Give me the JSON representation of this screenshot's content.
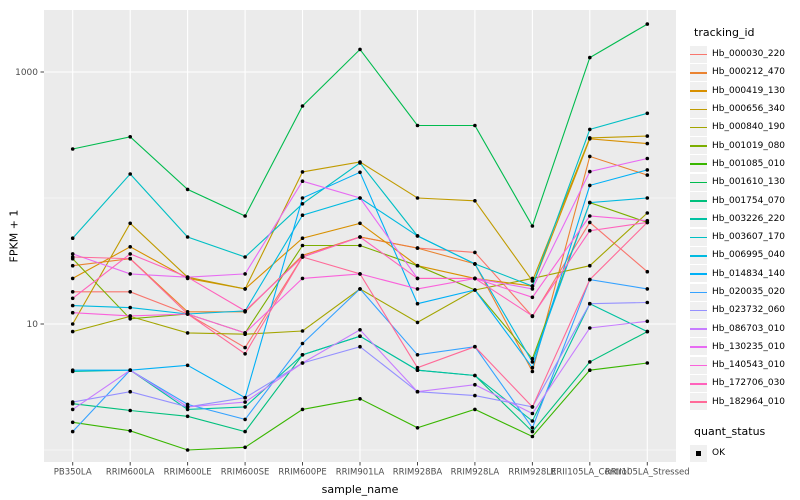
{
  "legend": {
    "tracking_title": "tracking_id",
    "quant_title": "quant_status",
    "quant_items": [
      "OK"
    ]
  },
  "chart_data": {
    "type": "line",
    "title": "",
    "xlabel": "sample_name",
    "ylabel": "FPKM + 1",
    "y_scale": "log10",
    "y_ticks": [
      10,
      1000
    ],
    "y_minor_gridlines": [
      1,
      100
    ],
    "ylim": [
      0.8,
      3100
    ],
    "grid": true,
    "legend_position": "right",
    "panel_background": "#EBEBEB",
    "gridline_color": "#FFFFFF",
    "point_color": "#000000",
    "quant_status_levels": [
      "OK"
    ],
    "categories": [
      "PB350LA",
      "RRIM600LA",
      "RRIM600LE",
      "RRIM600SE",
      "RRIM600PE",
      "RRIM901LA",
      "RRIM928BA",
      "RRIM928LA",
      "RRIM928LE",
      "RRII105LA_Control",
      "RRII105LA_Stressed"
    ],
    "series": [
      {
        "name": "Hb_000030_220",
        "color": "#F8766D",
        "values": [
          18,
          18,
          12,
          6.5,
          34,
          49,
          40,
          37,
          11.5,
          64,
          26
        ]
      },
      {
        "name": "Hb_000212_470",
        "color": "#EA8331",
        "values": [
          29,
          33,
          12.5,
          12.5,
          35,
          49,
          40,
          30,
          4.2,
          214,
          152
        ]
      },
      {
        "name": "Hb_000419_130",
        "color": "#D89000",
        "values": [
          23,
          41,
          23,
          19,
          48,
          63,
          29,
          23,
          20,
          295,
          270
        ]
      },
      {
        "name": "Hb_000656_340",
        "color": "#C09B00",
        "values": [
          10,
          63,
          23.5,
          19,
          161,
          193,
          100,
          95,
          22,
          300,
          310
        ]
      },
      {
        "name": "Hb_000840_190",
        "color": "#A3A500",
        "values": [
          8.7,
          11.5,
          8.5,
          8.3,
          8.8,
          19,
          10.3,
          18.6,
          23,
          29,
          76
        ]
      },
      {
        "name": "Hb_001019_080",
        "color": "#7CAE00",
        "values": [
          33,
          11,
          12,
          8.5,
          42,
          42,
          29,
          18.6,
          5.3,
          92,
          64
        ]
      },
      {
        "name": "Hb_001085_010",
        "color": "#39B600",
        "values": [
          1.66,
          1.42,
          1.0,
          1.05,
          2.1,
          2.55,
          1.5,
          2.1,
          1.28,
          4.3,
          4.9
        ]
      },
      {
        "name": "Hb_001610_130",
        "color": "#00BB4E",
        "values": [
          245,
          306,
          117,
          72,
          537,
          1510,
          376,
          376,
          60,
          1300,
          2400
        ]
      },
      {
        "name": "Hb_001754_070",
        "color": "#00C07D",
        "values": [
          2.33,
          2.06,
          1.85,
          1.4,
          5.7,
          8,
          4.3,
          3.9,
          1.4,
          5.0,
          8.7
        ]
      },
      {
        "name": "Hb_003226_220",
        "color": "#00C1A2",
        "values": [
          4.2,
          4.3,
          2.1,
          2.2,
          5.7,
          8,
          4.3,
          3.9,
          1.7,
          14.5,
          8.7
        ]
      },
      {
        "name": "Hb_003607_170",
        "color": "#00BFC4",
        "values": [
          48,
          155,
          49,
          34,
          90,
          190,
          50,
          30,
          20,
          350,
          470
        ]
      },
      {
        "name": "Hb_006995_040",
        "color": "#00BAE0",
        "values": [
          14,
          13.5,
          12,
          12.7,
          73,
          100,
          50,
          30,
          5,
          92,
          100
        ]
      },
      {
        "name": "Hb_014834_140",
        "color": "#00B0F6",
        "values": [
          4.3,
          4.3,
          4.7,
          2.6,
          100,
          160,
          14.5,
          18.6,
          4.5,
          126,
          167
        ]
      },
      {
        "name": "Hb_020035_020",
        "color": "#35A2FF",
        "values": [
          1.4,
          4.3,
          2.3,
          1.75,
          7.0,
          19,
          5.7,
          6.6,
          1.5,
          22.5,
          19
        ]
      },
      {
        "name": "Hb_023732_060",
        "color": "#9590FF",
        "values": [
          2.4,
          2.9,
          2.2,
          2.6,
          4.9,
          6.6,
          2.9,
          2.7,
          2.2,
          14.5,
          14.8
        ]
      },
      {
        "name": "Hb_086703_010",
        "color": "#C77CFF",
        "values": [
          2.1,
          4.3,
          2.2,
          2.4,
          4.9,
          9,
          2.9,
          3.3,
          1.95,
          9.3,
          10.5
        ]
      },
      {
        "name": "Hb_130235_010",
        "color": "#E76BF3",
        "values": [
          36,
          25,
          23.5,
          25,
          136,
          100,
          23,
          23,
          19,
          162,
          206
        ]
      },
      {
        "name": "Hb_140543_010",
        "color": "#FA62DB",
        "values": [
          12.3,
          11.6,
          12,
          8.5,
          23,
          25,
          19,
          23,
          16.3,
          72,
          66
        ]
      },
      {
        "name": "Hb_172706_030",
        "color": "#FF62BC",
        "values": [
          16,
          36,
          23.5,
          12.7,
          34,
          49,
          23,
          23,
          11.6,
          55,
          64
        ]
      },
      {
        "name": "Hb_182964_010",
        "color": "#FF6A98",
        "values": [
          34,
          33,
          12,
          5.8,
          34,
          25,
          4.5,
          6.6,
          2.2,
          22.5,
          64
        ]
      }
    ]
  }
}
